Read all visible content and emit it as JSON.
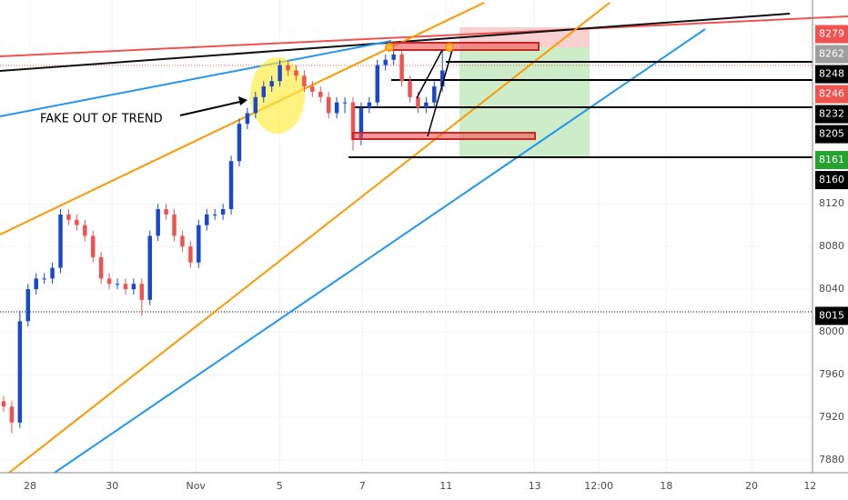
{
  "chart_data": {
    "type": "candlestick",
    "annotation": "FAKE OUT OF TREND",
    "up_color": "#1848cc",
    "down_color": "#ef5350",
    "close": [
      7930,
      7915,
      8010,
      8040,
      8050,
      8050,
      8060,
      8110,
      8105,
      8100,
      8090,
      8070,
      8050,
      8045,
      8045,
      8040,
      8045,
      8030,
      8090,
      8115,
      8110,
      8090,
      8080,
      8065,
      8100,
      8110,
      8110,
      8115,
      8160,
      8195,
      8205,
      8220,
      8230,
      8235,
      8250,
      8245,
      8240,
      8230,
      8225,
      8220,
      8205,
      8215,
      8215,
      8180,
      8210,
      8215,
      8250,
      8255,
      8260,
      8235,
      8220,
      8210,
      8215,
      8230,
      8245
    ],
    "open": [
      7935,
      7930,
      7915,
      8010,
      8040,
      8050,
      8050,
      8060,
      8110,
      8105,
      8100,
      8090,
      8070,
      8050,
      8045,
      8045,
      8040,
      8045,
      8030,
      8090,
      8115,
      8110,
      8090,
      8080,
      8065,
      8100,
      8110,
      8110,
      8115,
      8160,
      8195,
      8205,
      8220,
      8230,
      8235,
      8250,
      8245,
      8240,
      8230,
      8225,
      8220,
      8205,
      8215,
      8215,
      8180,
      8210,
      8215,
      8250,
      8255,
      8260,
      8235,
      8220,
      8210,
      8215,
      8230
    ],
    "high": [
      7940,
      7935,
      8020,
      8045,
      8055,
      8055,
      8065,
      8115,
      8115,
      8110,
      8105,
      8095,
      8075,
      8055,
      8050,
      8050,
      8050,
      8050,
      8095,
      8120,
      8120,
      8115,
      8095,
      8085,
      8105,
      8115,
      8115,
      8120,
      8165,
      8200,
      8210,
      8225,
      8235,
      8240,
      8255,
      8255,
      8250,
      8245,
      8235,
      8230,
      8225,
      8220,
      8220,
      8220,
      8215,
      8220,
      8255,
      8260,
      8270,
      8265,
      8240,
      8225,
      8220,
      8235,
      8265
    ],
    "low": [
      7925,
      7905,
      7910,
      8005,
      8035,
      8045,
      8045,
      8055,
      8100,
      8095,
      8085,
      8065,
      8045,
      8040,
      8040,
      8035,
      8035,
      8015,
      8025,
      8085,
      8105,
      8085,
      8075,
      8060,
      8060,
      8095,
      8105,
      8105,
      8110,
      8155,
      8190,
      8200,
      8215,
      8225,
      8230,
      8240,
      8235,
      8225,
      8220,
      8215,
      8200,
      8200,
      8205,
      8170,
      8175,
      8205,
      8210,
      8245,
      8250,
      8230,
      8215,
      8205,
      8205,
      8210,
      8225
    ],
    "x": [
      0,
      1,
      2,
      3,
      4,
      5,
      6,
      7,
      8,
      9,
      10,
      11,
      12,
      13,
      14,
      15,
      16,
      17,
      18,
      19,
      20,
      21,
      22,
      23,
      24,
      25,
      26,
      27,
      28,
      29,
      30,
      31,
      32,
      33,
      34,
      35,
      36,
      37,
      38,
      39,
      40,
      41,
      42,
      43,
      44,
      45,
      46,
      47,
      48,
      49,
      50,
      51,
      52,
      53,
      54
    ],
    "xlim": [
      0,
      100
    ],
    "xticks": [
      {
        "value": 3.7,
        "label": "28"
      },
      {
        "value": 13.8,
        "label": "30"
      },
      {
        "value": 24.1,
        "label": "Nov"
      },
      {
        "value": 34.4,
        "label": "5"
      },
      {
        "value": 44.6,
        "label": "7"
      },
      {
        "value": 54.9,
        "label": "11"
      },
      {
        "value": 65.8,
        "label": "13"
      },
      {
        "value": 73.7,
        "label": "12:00"
      },
      {
        "value": 82,
        "label": "18"
      },
      {
        "value": 92.5,
        "label": "20"
      },
      {
        "value": 99.7,
        "label": "12"
      }
    ],
    "ylim": [
      7868,
      8311
    ],
    "yticks": [
      7880,
      7920,
      7960,
      8000,
      8040,
      8080,
      8120
    ],
    "price_labels": [
      {
        "value": 8279,
        "color": "#ef5350"
      },
      {
        "value": 8262,
        "color": "#9e9e9e"
      },
      {
        "value": 8248,
        "color": "#000000"
      },
      {
        "value": 8246,
        "color": "#ef5350"
      },
      {
        "value": 8232,
        "color": "#000000"
      },
      {
        "value": 8205,
        "color": "#000000"
      },
      {
        "value": 8161,
        "color": "#26a22e"
      },
      {
        "value": 8160,
        "color": "#000000"
      },
      {
        "value": 8015,
        "color": "#000000"
      }
    ]
  }
}
